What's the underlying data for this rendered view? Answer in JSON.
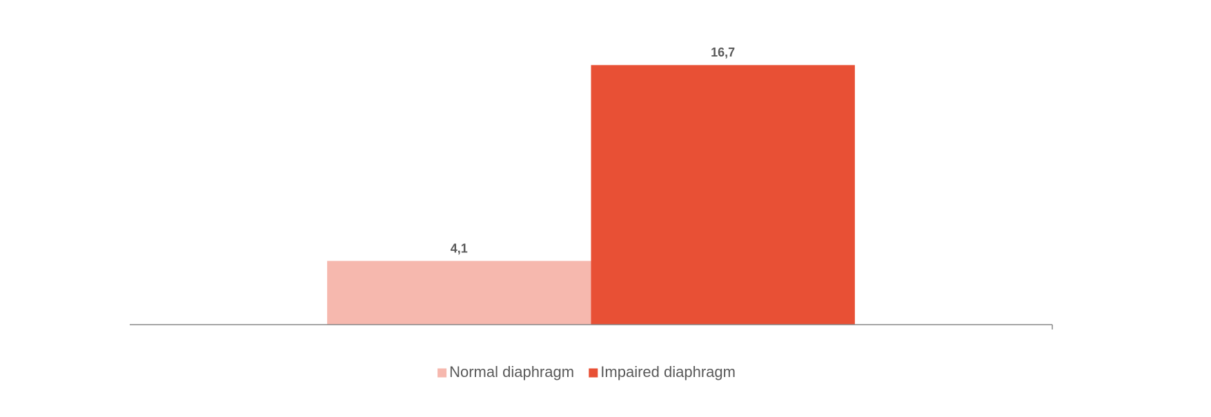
{
  "chart_data": {
    "type": "bar",
    "categories": [
      null
    ],
    "series": [
      {
        "name": "Normal diaphragm",
        "color": "#f6b8ae",
        "values": [
          4.1
        ],
        "value_labels": [
          "4,1"
        ]
      },
      {
        "name": "Impaired diaphragm",
        "color": "#e85035",
        "values": [
          16.7
        ],
        "value_labels": [
          "16,7"
        ]
      }
    ],
    "ylim": [
      0,
      20
    ],
    "legend": "bottom"
  }
}
